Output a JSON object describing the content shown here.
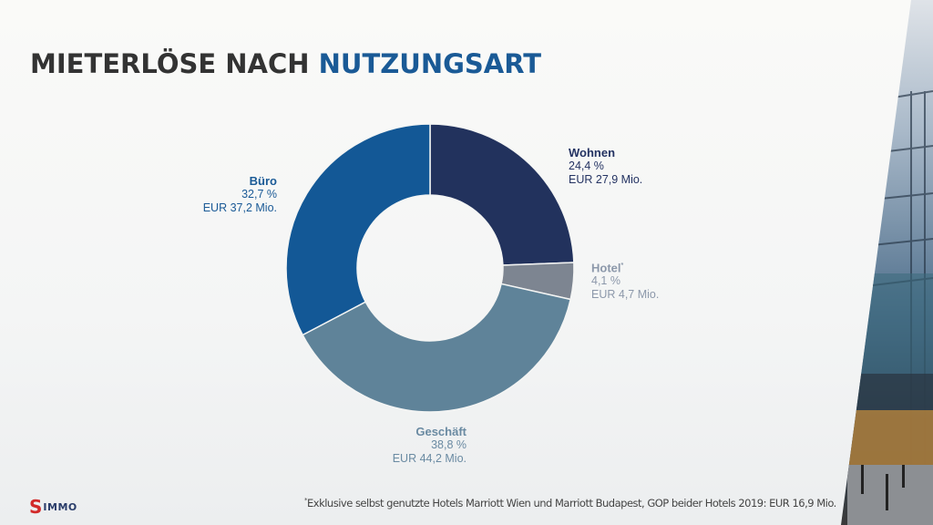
{
  "slide": {
    "title_part1": "MIETERLÖSE NACH",
    "title_part2": "NUTZUNGSART",
    "footnote_marker": "*",
    "footnote": "Exklusive selbst genutzte Hotels Marriott Wien und Marriott Budapest, GOP beider Hotels 2019: EUR 16,9 Mio.",
    "logo_mark": "S",
    "logo_text": "IMMO"
  },
  "colors": {
    "title_accent": "#1a5a96",
    "title_dark": "#333333"
  },
  "chart_data": {
    "type": "pie",
    "variant": "donut",
    "title": "Mieterlöse nach Nutzungsart",
    "start": "top",
    "direction": "clockwise",
    "legend": "none (direct labels)",
    "series": [
      {
        "name": "Wohnen",
        "percent": 24.4,
        "percent_label": "24,4 %",
        "value_label": "EUR 27,9 Mio.",
        "value_mio_eur": 27.9,
        "color": "#22325d",
        "footnote": false
      },
      {
        "name": "Hotel",
        "percent": 4.1,
        "percent_label": "4,1 %",
        "value_label": "EUR 4,7 Mio.",
        "value_mio_eur": 4.7,
        "color": "#7d8591",
        "footnote": true
      },
      {
        "name": "Geschäft",
        "percent": 38.8,
        "percent_label": "38,8 %",
        "value_label": "EUR 44,2 Mio.",
        "value_mio_eur": 44.2,
        "color": "#5f8399",
        "footnote": false
      },
      {
        "name": "Büro",
        "percent": 32.7,
        "percent_label": "32,7 %",
        "value_label": "EUR 37,2 Mio.",
        "value_mio_eur": 37.2,
        "color": "#135896",
        "footnote": false
      }
    ]
  }
}
